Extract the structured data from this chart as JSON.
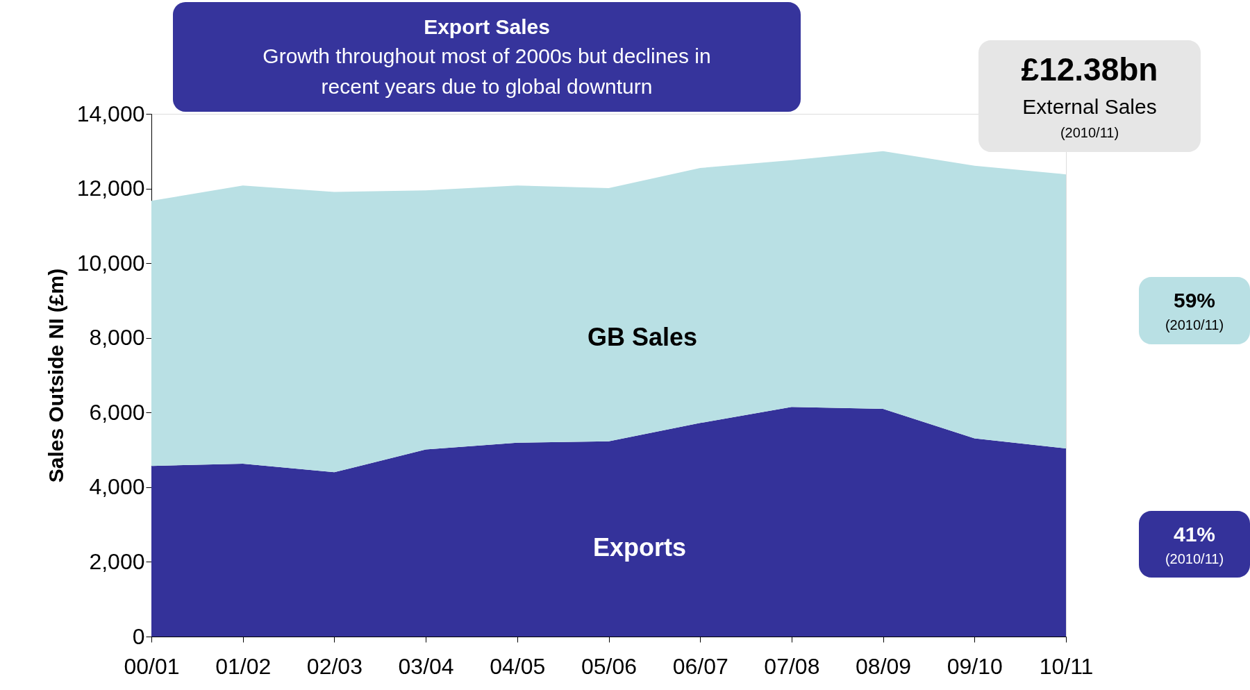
{
  "chart_data": {
    "type": "area",
    "stacked": true,
    "title": "Export Sales",
    "subtitle": "Growth throughout most of 2000s but declines in recent years due to global downturn",
    "ylabel": "Sales Outside NI (£m)",
    "categories": [
      "00/01",
      "01/02",
      "02/03",
      "03/04",
      "04/05",
      "05/06",
      "06/07",
      "07/08",
      "08/09",
      "09/10",
      "10/11"
    ],
    "series": [
      {
        "name": "Exports",
        "color": "#34329a",
        "values": [
          4570,
          4630,
          4400,
          5010,
          5190,
          5230,
          5720,
          6150,
          6100,
          5310,
          5040
        ]
      },
      {
        "name": "GB Sales",
        "color": "#b9e0e4",
        "values": [
          7100,
          7450,
          7510,
          6940,
          6890,
          6780,
          6830,
          6610,
          6900,
          7300,
          7340
        ]
      }
    ],
    "ylim": [
      0,
      14000
    ],
    "yticks": [
      0,
      {
        "value": 2000,
        "label": "2,000"
      },
      {
        "value": 4000,
        "label": "4,000"
      },
      {
        "value": 6000,
        "label": "6,000"
      },
      {
        "value": 8000,
        "label": "8,000"
      },
      {
        "value": 10000,
        "label": "10,000"
      },
      {
        "value": 12000,
        "label": "12,000"
      },
      {
        "value": 14000,
        "label": "14,000"
      }
    ],
    "grid": false,
    "legend": false,
    "annotations": [
      "£12.38bn",
      "External Sales",
      "(2010/11)",
      "59%",
      "(2010/11)",
      "41%",
      "(2010/11)"
    ]
  }
}
